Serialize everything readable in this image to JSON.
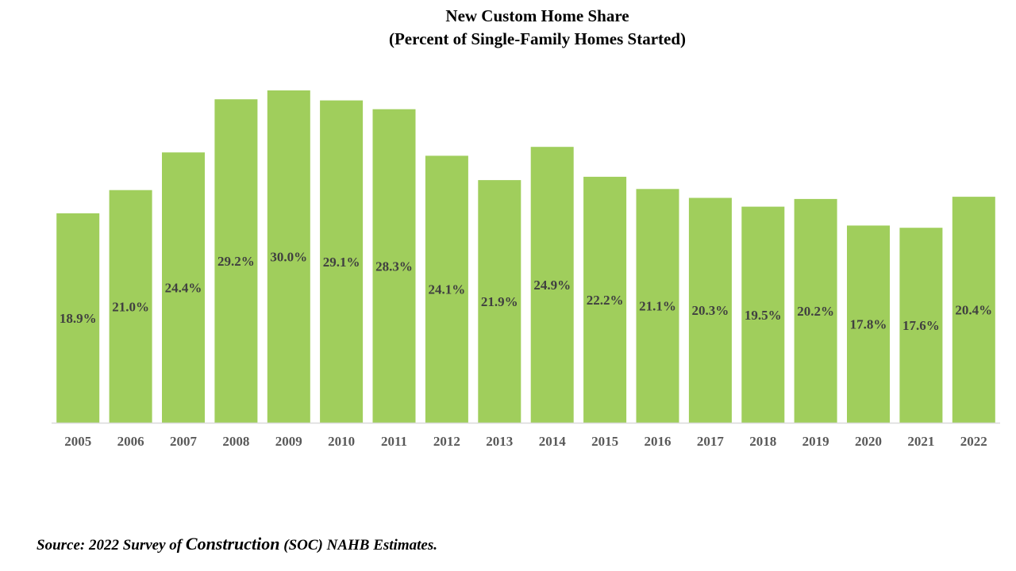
{
  "chart_data": {
    "type": "bar",
    "title": "New Custom Home Share",
    "subtitle": "(Percent of Single-Family Homes Started)",
    "categories": [
      "2005",
      "2006",
      "2007",
      "2008",
      "2009",
      "2010",
      "2011",
      "2012",
      "2013",
      "2014",
      "2015",
      "2016",
      "2017",
      "2018",
      "2019",
      "2020",
      "2021",
      "2022"
    ],
    "values": [
      18.9,
      21.0,
      24.4,
      29.2,
      30.0,
      29.1,
      28.3,
      24.1,
      21.9,
      24.9,
      22.2,
      21.1,
      20.3,
      19.5,
      20.2,
      17.8,
      17.6,
      20.4
    ],
    "value_labels": [
      "18.9%",
      "21.0%",
      "24.4%",
      "29.2%",
      "30.0%",
      "29.1%",
      "28.3%",
      "24.1%",
      "21.9%",
      "24.9%",
      "22.2%",
      "21.1%",
      "20.3%",
      "19.5%",
      "20.2%",
      "17.8%",
      "17.6%",
      "20.4%"
    ],
    "xlabel": "",
    "ylabel": "",
    "ylim": [
      0,
      30
    ],
    "grid": false,
    "legend": "none",
    "colors": {
      "bar": "#a0ce5c",
      "axis": "#d9d9d9",
      "label": "#404040",
      "tick": "#595959"
    }
  },
  "footer": {
    "source_part1": "Source:  2022 Survey of ",
    "source_part2": "Construction",
    "source_part3": " (SOC) NAHB Estimates."
  }
}
